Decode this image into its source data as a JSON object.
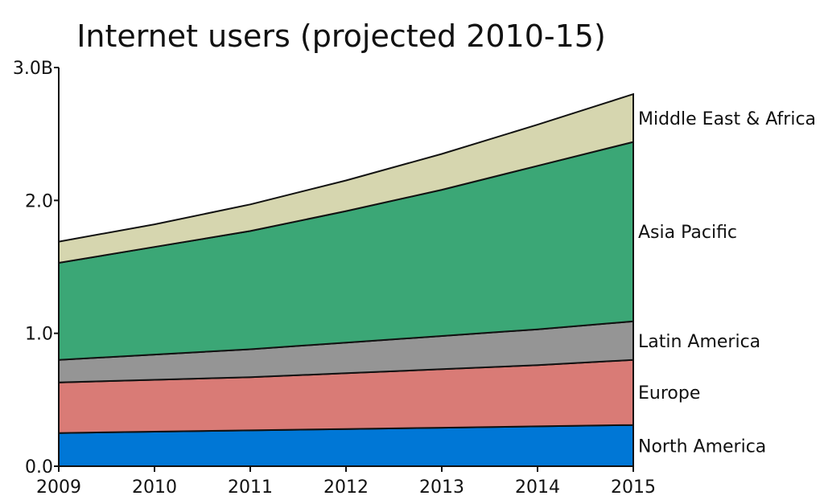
{
  "chart_data": {
    "type": "area",
    "title": "Internet users (projected 2010-15)",
    "xlabel": "",
    "ylabel": "",
    "x": [
      2009,
      2010,
      2011,
      2012,
      2013,
      2014,
      2015
    ],
    "x_tick_labels": [
      "2009",
      "2010",
      "2011",
      "2012",
      "2013",
      "2014",
      "2015"
    ],
    "ylim": [
      0,
      3.0
    ],
    "y_ticks": [
      0,
      1.0,
      2.0,
      3.0
    ],
    "y_tick_labels": [
      "0.0",
      "1.0",
      "2.0",
      "3.0B"
    ],
    "stacked": true,
    "grid": false,
    "legend": "inline labels at right edge",
    "series": [
      {
        "name": "North America",
        "color": "#0077d6",
        "values": [
          0.25,
          0.26,
          0.27,
          0.28,
          0.29,
          0.3,
          0.31
        ]
      },
      {
        "name": "Europe",
        "color": "#d97b76",
        "values": [
          0.38,
          0.39,
          0.4,
          0.42,
          0.44,
          0.46,
          0.49
        ]
      },
      {
        "name": "Latin America",
        "color": "#959595",
        "values": [
          0.17,
          0.19,
          0.21,
          0.23,
          0.25,
          0.27,
          0.29
        ]
      },
      {
        "name": "Asia Pacific",
        "color": "#3ba776",
        "values": [
          0.73,
          0.81,
          0.89,
          0.99,
          1.1,
          1.23,
          1.35
        ]
      },
      {
        "name": "Middle East & Africa",
        "color": "#d6d6af",
        "values": [
          0.16,
          0.17,
          0.2,
          0.23,
          0.27,
          0.31,
          0.36
        ]
      }
    ]
  }
}
